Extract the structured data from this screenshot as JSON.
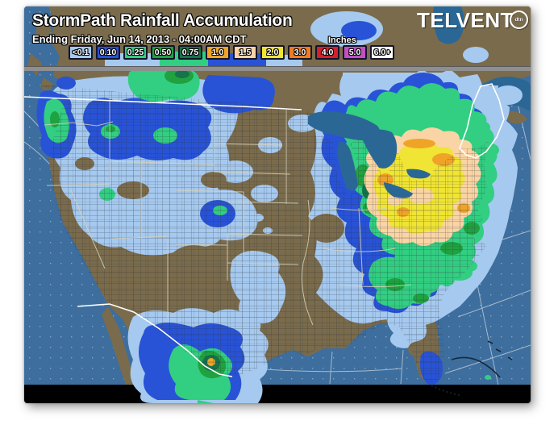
{
  "header": {
    "title": "StormPath Rainfall Accumulation",
    "subtitle": "Ending Friday, Jun 14, 2013 - 04:00AM CDT",
    "units_label": "Inches",
    "logo": {
      "text": "TELVENT",
      "badge": "dtn"
    }
  },
  "legend": {
    "items": [
      {
        "label": "<0.1",
        "color": "#A6C9EF"
      },
      {
        "label": "0.10",
        "color": "#2853D6"
      },
      {
        "label": "0.25",
        "color": "#32CE82"
      },
      {
        "label": "0.50",
        "color": "#1FA23F"
      },
      {
        "label": "0.75",
        "color": "#15744A"
      },
      {
        "label": "1.0",
        "color": "#EFA428"
      },
      {
        "label": "1.5",
        "color": "#FAD4A4"
      },
      {
        "label": "2.0",
        "color": "#F0E434"
      },
      {
        "label": "3.0",
        "color": "#F07C20"
      },
      {
        "label": "4.0",
        "color": "#D3202C"
      },
      {
        "label": "5.0",
        "color": "#C44FC4"
      },
      {
        "label": "6.0+",
        "color": "#FFFFFF"
      }
    ]
  },
  "palette": {
    "ocean": "#3D6E9E",
    "speckle": "#A8C4DE",
    "land": "#7A6B4C",
    "lake": "#2B6795",
    "black_bar": "#000000",
    "separator": "#8F8F8F",
    "separator_edge": "#5A5A5A",
    "precip_01": "#A6C9EF",
    "precip_10": "#2853D6",
    "precip_25": "#32CE82",
    "precip_50": "#1FA23F",
    "precip_75": "#15744A",
    "precip_100": "#EFA428",
    "precip_150": "#FAD4A4",
    "precip_200": "#F0E434",
    "precip_300": "#F07C20",
    "border_state": "#D6D2B8",
    "border_country": "#FFFFFF",
    "county_line": "#2E3138",
    "ocean_grid": "#C9D2DC",
    "island_outline": "#16293C"
  },
  "precipitation_regions": [
    {
      "name": "pacific-northwest-oregon-coast",
      "peak_value": "0.50"
    },
    {
      "name": "idaho-montana-rockies",
      "peak_value": "0.50"
    },
    {
      "name": "southern-canada-prairies",
      "peak_value": "0.75"
    },
    {
      "name": "colorado-front-range",
      "peak_value": "0.50"
    },
    {
      "name": "northeast-ohio-valley-new-york-pennsylvania",
      "peak_value": "2.0"
    },
    {
      "name": "appalachians-mid-atlantic",
      "peak_value": "0.75"
    },
    {
      "name": "south-texas-northern-mexico",
      "peak_value": "1.0"
    },
    {
      "name": "south-florida",
      "peak_value": "0.25"
    }
  ]
}
